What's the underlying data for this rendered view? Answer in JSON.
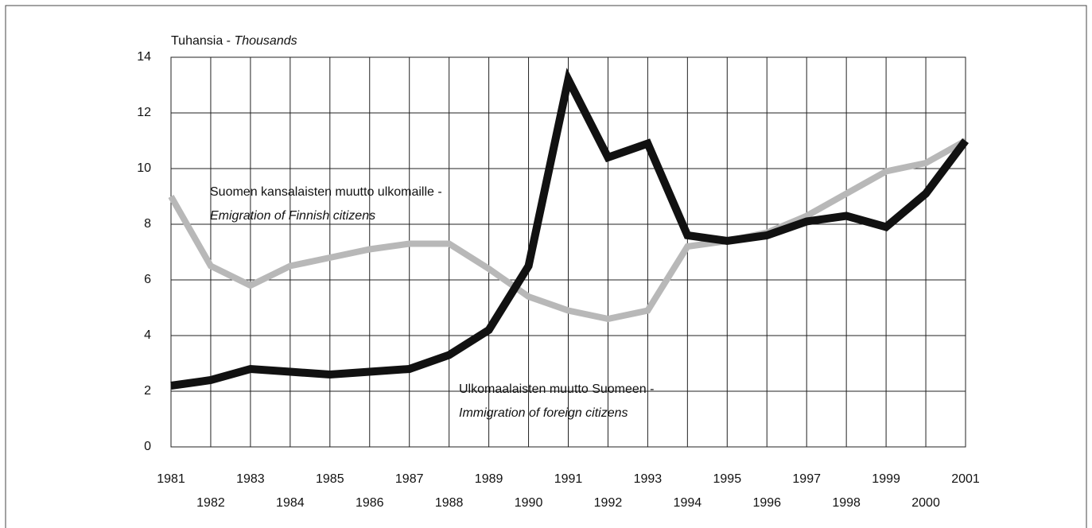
{
  "chart_data": {
    "type": "line",
    "y_label": "Tuhansia - ",
    "y_label_en": "Thousands",
    "x": [
      1981,
      1982,
      1983,
      1984,
      1985,
      1986,
      1987,
      1988,
      1989,
      1990,
      1991,
      1992,
      1993,
      1994,
      1995,
      1996,
      1997,
      1998,
      1999,
      2000,
      2001
    ],
    "series": [
      {
        "name": "Suomen kansalaisten muutto ulkomaille -",
        "name_en": "Emigration of Finnish citizens",
        "color": "#b8b8b8",
        "values": [
          9.0,
          6.5,
          5.8,
          6.5,
          6.8,
          7.1,
          7.3,
          7.3,
          6.4,
          5.4,
          4.9,
          4.6,
          4.9,
          7.2,
          7.4,
          7.7,
          8.3,
          9.1,
          9.9,
          10.2,
          11.0
        ]
      },
      {
        "name": "Ulkomaalaisten muutto Suomeen -",
        "name_en": "Immigration of foreign citizens",
        "color": "#111111",
        "values": [
          2.2,
          2.4,
          2.8,
          2.7,
          2.6,
          2.7,
          2.8,
          3.3,
          4.2,
          6.5,
          13.2,
          10.4,
          10.9,
          7.6,
          7.4,
          7.6,
          8.1,
          8.3,
          7.9,
          9.1,
          11.0
        ]
      }
    ],
    "xlim": [
      1981,
      2001
    ],
    "xticks": [
      1981,
      1982,
      1983,
      1984,
      1985,
      1986,
      1987,
      1988,
      1989,
      1990,
      1991,
      1992,
      1993,
      1994,
      1995,
      1996,
      1997,
      1998,
      1999,
      2000,
      2001
    ],
    "ylim": [
      0,
      14
    ],
    "yticks": [
      0,
      2,
      4,
      6,
      8,
      10,
      12,
      14
    ],
    "grid": true
  }
}
